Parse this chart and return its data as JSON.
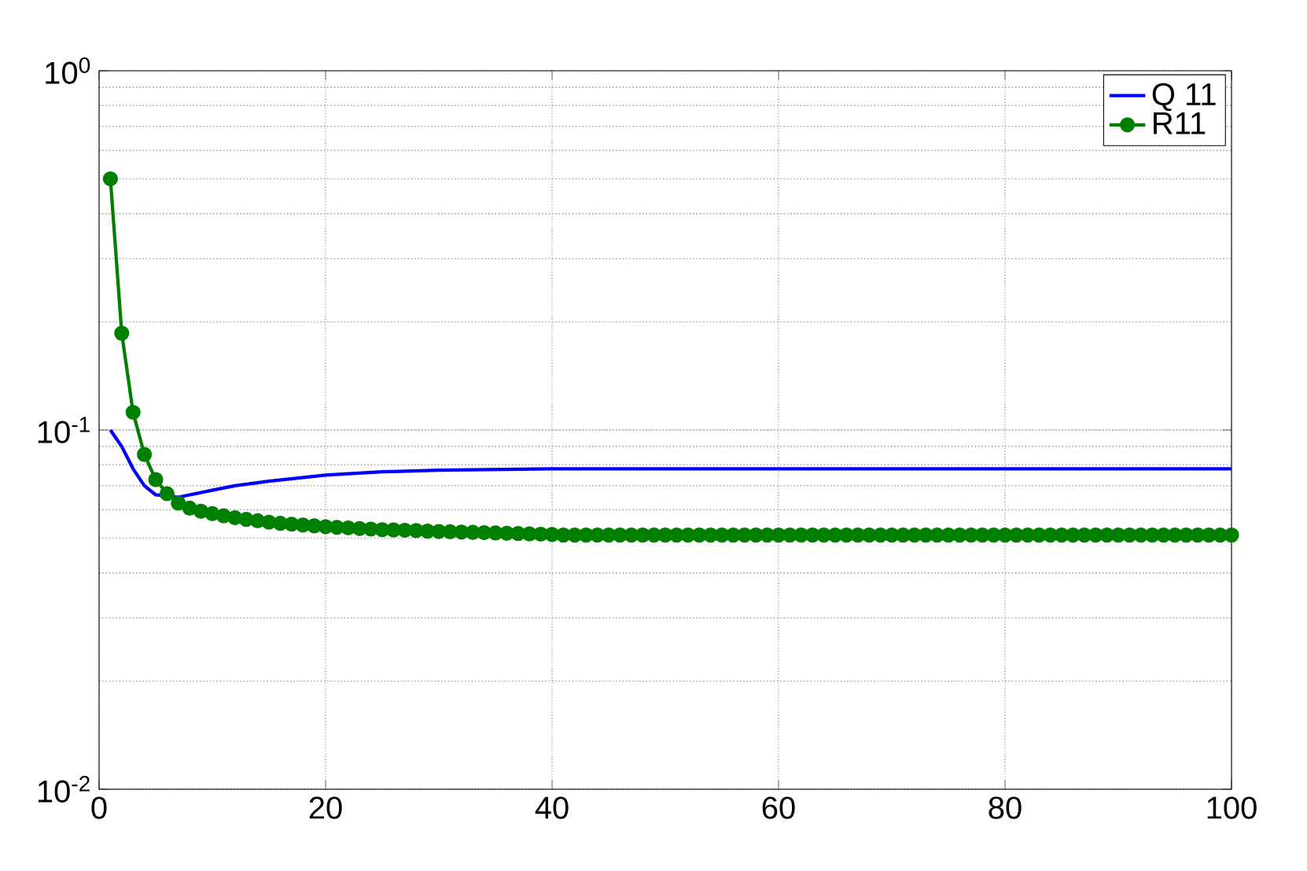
{
  "chart_data": {
    "type": "line",
    "log": "y",
    "grid": true,
    "legend": "top right",
    "xlim": [
      0,
      100
    ],
    "xticks": [
      0,
      20,
      40,
      60,
      80,
      100
    ],
    "ylim": [
      0.01,
      1
    ],
    "yticks": [
      {
        "value": 0.01,
        "label": "10$^{-2}$"
      },
      {
        "value": 0.1,
        "label": "10$^{-1}$"
      },
      {
        "value": 1,
        "label": "10$^{0}$"
      }
    ],
    "series": [
      {
        "name": "Q  11",
        "color": "#0000ff",
        "marker": "none",
        "x": [
          1,
          2,
          3,
          4,
          5,
          7,
          8,
          10,
          12,
          15,
          20,
          25,
          30,
          40,
          50,
          100
        ],
        "values": [
          0.1,
          0.09,
          0.078,
          0.07,
          0.066,
          0.065,
          0.066,
          0.068,
          0.07,
          0.072,
          0.0749,
          0.0765,
          0.0773,
          0.078,
          0.078,
          0.078
        ]
      },
      {
        "name": "R11",
        "color": "#007f00",
        "marker": "circle",
        "x": [
          1,
          2,
          3,
          4,
          5,
          6,
          7,
          8,
          9,
          10,
          11,
          12,
          13,
          14,
          15,
          16,
          17,
          18,
          19,
          20,
          21,
          22,
          23,
          24,
          25,
          26,
          27,
          28,
          29,
          30,
          31,
          32,
          33,
          34,
          35,
          36,
          37,
          38,
          39,
          40,
          41,
          42,
          43,
          44,
          45,
          46,
          47,
          48,
          49,
          50,
          51,
          52,
          53,
          54,
          55,
          56,
          57,
          58,
          59,
          60,
          61,
          62,
          63,
          64,
          65,
          66,
          67,
          68,
          69,
          70,
          71,
          72,
          73,
          74,
          75,
          76,
          77,
          78,
          79,
          80,
          81,
          82,
          83,
          84,
          85,
          86,
          87,
          88,
          89,
          90,
          91,
          92,
          93,
          94,
          95,
          96,
          97,
          98,
          99,
          100
        ],
        "values": [
          0.5,
          0.186,
          0.112,
          0.0855,
          0.0728,
          0.0665,
          0.0626,
          0.0606,
          0.0594,
          0.0585,
          0.0577,
          0.057,
          0.0564,
          0.0559,
          0.0554,
          0.055,
          0.0547,
          0.0544,
          0.0541,
          0.0538,
          0.0536,
          0.0534,
          0.0532,
          0.053,
          0.0528,
          0.0527,
          0.0526,
          0.0525,
          0.0523,
          0.0522,
          0.0521,
          0.052,
          0.0519,
          0.0518,
          0.0517,
          0.0516,
          0.0515,
          0.0514,
          0.0513,
          0.0512,
          0.051,
          0.051,
          0.051,
          0.051,
          0.051,
          0.051,
          0.051,
          0.051,
          0.051,
          0.051,
          0.051,
          0.051,
          0.051,
          0.051,
          0.051,
          0.051,
          0.051,
          0.051,
          0.051,
          0.051,
          0.051,
          0.051,
          0.051,
          0.051,
          0.051,
          0.051,
          0.051,
          0.051,
          0.051,
          0.051,
          0.051,
          0.051,
          0.051,
          0.051,
          0.051,
          0.051,
          0.051,
          0.051,
          0.051,
          0.051,
          0.051,
          0.051,
          0.051,
          0.051,
          0.051,
          0.051,
          0.051,
          0.051,
          0.051,
          0.051,
          0.051,
          0.051,
          0.051,
          0.051,
          0.051,
          0.051,
          0.051,
          0.051,
          0.051,
          0.051
        ]
      }
    ]
  }
}
